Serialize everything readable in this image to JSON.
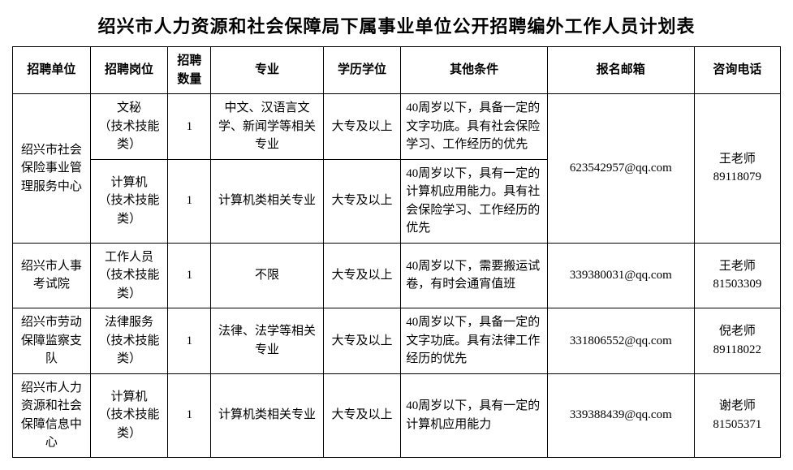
{
  "title": "绍兴市人力资源和社会保障局下属事业单位公开招聘编外工作人员计划表",
  "headers": {
    "unit": "招聘单位",
    "position": "招聘岗位",
    "count": "招聘数量",
    "major": "专业",
    "education": "学历学位",
    "other": "其他条件",
    "email": "报名邮箱",
    "phone": "咨询电话"
  },
  "rows": [
    {
      "unit": "绍兴市社会保险事业管理服务中心",
      "position": "文秘\n（技术技能类）",
      "count": "1",
      "major": "中文、汉语言文学、新闻学等相关专业",
      "education": "大专及以上",
      "other": "40周岁以下，具备一定的文字功底。具有社会保险学习、工作经历的优先",
      "email": "623542957@qq.com",
      "phone": "王老师\n89118079"
    },
    {
      "unit": "",
      "position": "计算机\n（技术技能类）",
      "count": "1",
      "major": "计算机类相关专业",
      "education": "大专及以上",
      "other": "40周岁以下，具有一定的计算机应用能力。具有社会保险学习、工作经历的优先",
      "email": "",
      "phone": ""
    },
    {
      "unit": "绍兴市人事考试院",
      "position": "工作人员\n（技术技能类）",
      "count": "1",
      "major": "不限",
      "education": "大专及以上",
      "other": "40周岁以下，需要搬运试卷，有时会通宵值班",
      "email": "339380031@qq.com",
      "phone": "王老师\n81503309"
    },
    {
      "unit": "绍兴市劳动保障监察支队",
      "position": "法律服务\n（技术技能类）",
      "count": "1",
      "major": "法律、法学等相关专业",
      "education": "大专及以上",
      "other": "40周岁以下，具备一定的文字功底。具有法律工作经历的优先",
      "email": "331806552@qq.com",
      "phone": "倪老师\n89118022"
    },
    {
      "unit": "绍兴市人力资源和社会保障信息中心",
      "position": "计算机\n（技术技能类）",
      "count": "1",
      "major": "计算机类相关专业",
      "education": "大专及以上",
      "other": "40周岁以下，具有一定的计算机应用能力",
      "email": "339388439@qq.com",
      "phone": "谢老师\n81505371"
    }
  ]
}
